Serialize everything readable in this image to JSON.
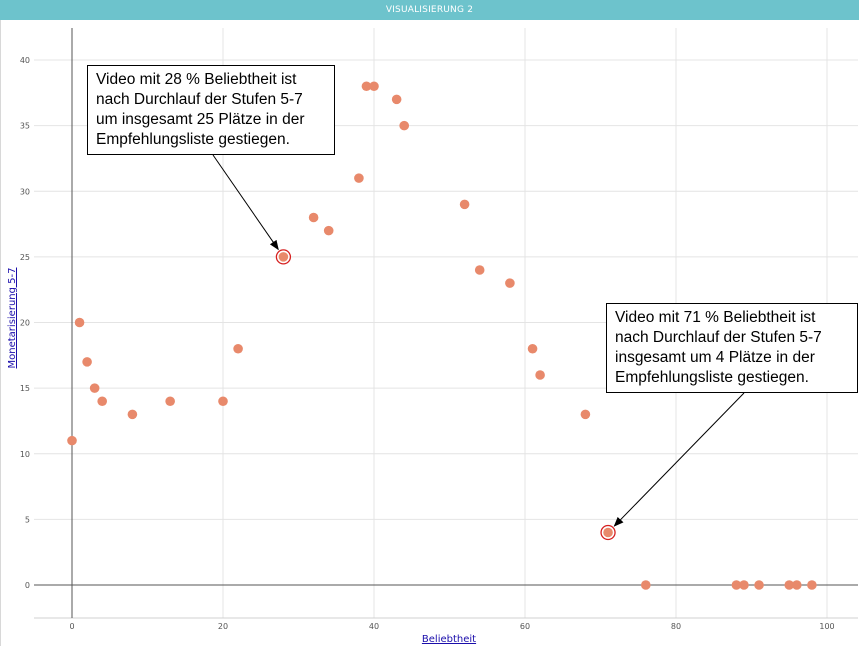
{
  "header": {
    "title": "VISUALISIERUNG 2"
  },
  "chart_data": {
    "type": "scatter",
    "xlabel": "Beliebtheit",
    "ylabel": "Monetarisierung 5-7",
    "xlim": [
      -5,
      105
    ],
    "ylim": [
      -2.5,
      42
    ],
    "x_ticks": [
      0,
      20,
      40,
      60,
      80,
      100
    ],
    "y_ticks": [
      0,
      5,
      10,
      15,
      20,
      25,
      30,
      35,
      40
    ],
    "grid": true,
    "point_color": "#e8896b",
    "highlight_color": "#d62020",
    "points": [
      {
        "x": 0,
        "y": 11
      },
      {
        "x": 1,
        "y": 20
      },
      {
        "x": 2,
        "y": 17
      },
      {
        "x": 3,
        "y": 15
      },
      {
        "x": 4,
        "y": 14
      },
      {
        "x": 8,
        "y": 13
      },
      {
        "x": 13,
        "y": 14
      },
      {
        "x": 20,
        "y": 14
      },
      {
        "x": 22,
        "y": 18
      },
      {
        "x": 28,
        "y": 25,
        "highlight": true
      },
      {
        "x": 32,
        "y": 28
      },
      {
        "x": 34,
        "y": 27
      },
      {
        "x": 38,
        "y": 31
      },
      {
        "x": 39,
        "y": 38
      },
      {
        "x": 40,
        "y": 38
      },
      {
        "x": 43,
        "y": 37
      },
      {
        "x": 44,
        "y": 35
      },
      {
        "x": 52,
        "y": 29
      },
      {
        "x": 54,
        "y": 24
      },
      {
        "x": 58,
        "y": 23
      },
      {
        "x": 61,
        "y": 18
      },
      {
        "x": 62,
        "y": 16
      },
      {
        "x": 68,
        "y": 13
      },
      {
        "x": 71,
        "y": 4,
        "highlight": true
      },
      {
        "x": 76,
        "y": 0
      },
      {
        "x": 88,
        "y": 0
      },
      {
        "x": 89,
        "y": 0
      },
      {
        "x": 91,
        "y": 0
      },
      {
        "x": 95,
        "y": 0
      },
      {
        "x": 96,
        "y": 0
      },
      {
        "x": 98,
        "y": 0
      }
    ],
    "annotations": [
      {
        "lines": [
          "Video mit 28 % Beliebtheit ist",
          "nach Durchlauf der Stufen 5-7",
          "um insgesamt 25 Plätze in der",
          "Empfehlungsliste gestiegen."
        ],
        "target": {
          "x": 28,
          "y": 25
        }
      },
      {
        "lines": [
          "Video mit 71 % Beliebtheit ist",
          "nach Durchlauf der Stufen 5-7",
          "insgesamt um 4 Plätze in der",
          "Empfehlungsliste gestiegen."
        ],
        "target": {
          "x": 71,
          "y": 4
        }
      }
    ]
  }
}
